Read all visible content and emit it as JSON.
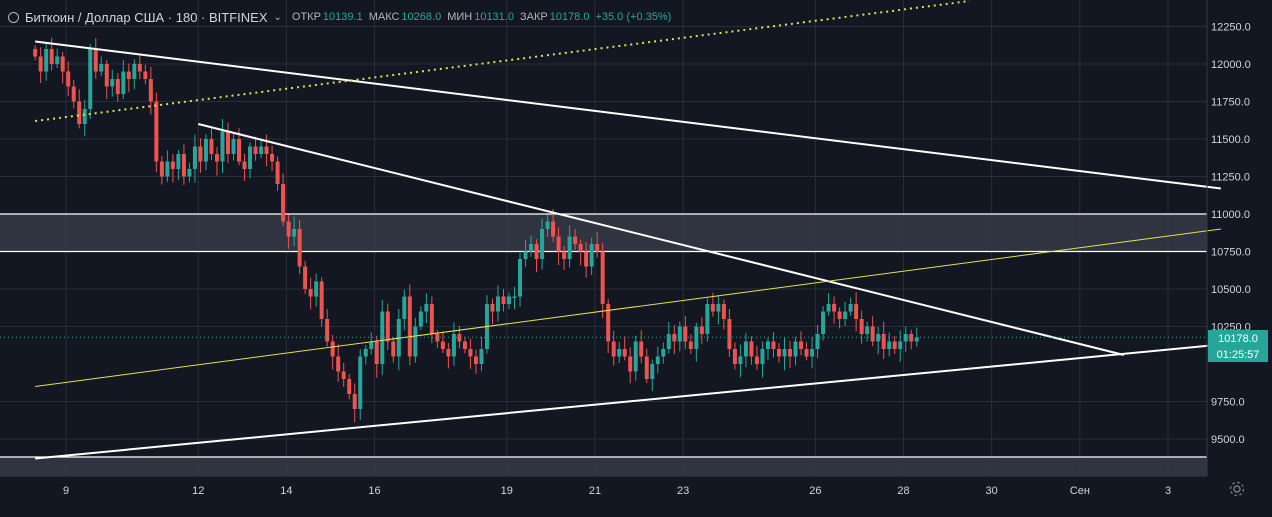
{
  "header": {
    "symbol": "Биткоин / Доллар США · 180 · BITFINEX",
    "open_label": "ОТКР",
    "open_value": "10139.1",
    "high_label": "МАКС",
    "high_value": "10268.0",
    "low_label": "МИН",
    "low_value": "10131.0",
    "close_label": "ЗАКР",
    "close_value": "10178.0",
    "change": "+35.0 (+0.35%)"
  },
  "price_badge": "10178.0",
  "countdown_badge": "01:25:57",
  "colors": {
    "up": "#26a69a",
    "down": "#ef5350",
    "bg": "#131722",
    "grid": "#2a2e39",
    "text": "#d1d4dc",
    "trend": "#ffffff",
    "yellow": "#e0e34d",
    "zone": "#363a45"
  },
  "chart_data": {
    "type": "candlestick",
    "y_ticks": [
      "12250.0",
      "12000.0",
      "11750.0",
      "11500.0",
      "11250.0",
      "11000.0",
      "10750.0",
      "10500.0",
      "10250.0",
      "9750.0",
      "9500.0"
    ],
    "y_tick_values": [
      12250,
      12000,
      11750,
      11500,
      11250,
      11000,
      10750,
      10500,
      10250,
      9750,
      9500
    ],
    "x_ticks": [
      "9",
      "12",
      "14",
      "16",
      "19",
      "21",
      "23",
      "26",
      "28",
      "30",
      "Сен",
      "3"
    ],
    "x_tick_days": [
      9,
      12,
      14,
      16,
      19,
      21,
      23,
      26,
      28,
      30,
      32,
      34
    ],
    "ylim": [
      9300,
      12400
    ],
    "xlim": [
      8.3,
      35.2
    ],
    "last_price": 10178.0,
    "candles_interval_hours": 3,
    "candles_start_day": 8.3,
    "closes": [
      12050,
      11950,
      12100,
      12000,
      12050,
      11950,
      11850,
      11750,
      11600,
      11700,
      12100,
      11950,
      12000,
      11850,
      11900,
      11800,
      11950,
      11900,
      12000,
      11950,
      11900,
      11750,
      11350,
      11250,
      11350,
      11300,
      11400,
      11250,
      11300,
      11450,
      11350,
      11500,
      11400,
      11350,
      11550,
      11400,
      11500,
      11350,
      11300,
      11450,
      11400,
      11450,
      11400,
      11350,
      11200,
      10950,
      10850,
      10900,
      10650,
      10500,
      10450,
      10550,
      10300,
      10150,
      10050,
      9950,
      9900,
      9800,
      9700,
      10050,
      10100,
      10150,
      10000,
      10350,
      10150,
      10050,
      10300,
      10450,
      10050,
      10250,
      10350,
      10400,
      10200,
      10150,
      10100,
      10050,
      10200,
      10150,
      10100,
      10050,
      10000,
      10100,
      10400,
      10350,
      10450,
      10400,
      10450,
      10450,
      10700,
      10750,
      10800,
      10700,
      10900,
      10950,
      10850,
      10750,
      10700,
      10850,
      10800,
      10750,
      10650,
      10800,
      10750,
      10400,
      10150,
      10050,
      10100,
      10050,
      9950,
      10150,
      10050,
      9900,
      10000,
      10050,
      10100,
      10200,
      10150,
      10250,
      10150,
      10100,
      10250,
      10200,
      10400,
      10350,
      10400,
      10300,
      10100,
      10000,
      10050,
      10150,
      10050,
      10000,
      10100,
      10150,
      10100,
      10050,
      10100,
      10050,
      10150,
      10100,
      10050,
      10100,
      10200,
      10350,
      10400,
      10350,
      10300,
      10350,
      10400,
      10300,
      10200,
      10250,
      10150,
      10200,
      10100,
      10150,
      10100,
      10150,
      10200,
      10150,
      10178
    ]
  }
}
